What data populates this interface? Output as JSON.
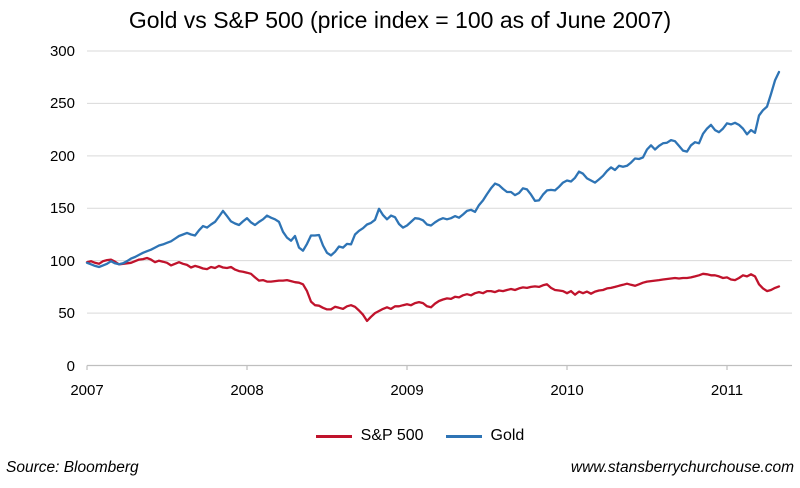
{
  "title": "Gold vs S&P 500 (price index = 100 as of June 2007)",
  "footer": {
    "source": "Source: Bloomberg",
    "website": "www.stansberrychurchouse.com"
  },
  "legend": [
    {
      "label": "S&P 500",
      "color": "#C0132C"
    },
    {
      "label": "Gold",
      "color": "#2E74B5"
    }
  ],
  "colors": {
    "gold_line": "#2E74B5",
    "spx_line": "#C0132C",
    "gridline": "#D9D9D9",
    "axis": "#BFBFBF",
    "text": "#000000",
    "background": "#FFFFFF"
  },
  "chart_data": {
    "type": "line",
    "title": "Gold vs S&P 500 (price index = 100 as of June 2007)",
    "xlabel": "",
    "ylabel": "",
    "ylim": [
      0,
      300
    ],
    "y_ticks": [
      0,
      50,
      100,
      150,
      200,
      250,
      300
    ],
    "x_tick_labels": [
      "2007",
      "2008",
      "2009",
      "2010",
      "2011"
    ],
    "grid": "horizontal",
    "legend_position": "bottom",
    "x_unit": "years after first tick, ~weekly points",
    "x": [
      0,
      0.025,
      0.05,
      0.075,
      0.1,
      0.125,
      0.15,
      0.175,
      0.2,
      0.225,
      0.25,
      0.275,
      0.3,
      0.325,
      0.35,
      0.375,
      0.4,
      0.425,
      0.45,
      0.475,
      0.5,
      0.525,
      0.55,
      0.575,
      0.6,
      0.625,
      0.65,
      0.675,
      0.7,
      0.725,
      0.75,
      0.775,
      0.8,
      0.825,
      0.85,
      0.875,
      0.9,
      0.925,
      0.95,
      0.975,
      1,
      1.025,
      1.05,
      1.075,
      1.1,
      1.125,
      1.15,
      1.175,
      1.2,
      1.225,
      1.25,
      1.275,
      1.3,
      1.325,
      1.35,
      1.375,
      1.4,
      1.425,
      1.45,
      1.475,
      1.5,
      1.525,
      1.55,
      1.575,
      1.6,
      1.625,
      1.65,
      1.675,
      1.7,
      1.725,
      1.75,
      1.775,
      1.8,
      1.825,
      1.85,
      1.875,
      1.9,
      1.925,
      1.95,
      1.975,
      2,
      2.025,
      2.05,
      2.075,
      2.1,
      2.125,
      2.15,
      2.175,
      2.2,
      2.225,
      2.25,
      2.275,
      2.3,
      2.325,
      2.35,
      2.375,
      2.4,
      2.425,
      2.45,
      2.475,
      2.5,
      2.525,
      2.55,
      2.575,
      2.6,
      2.625,
      2.65,
      2.675,
      2.7,
      2.725,
      2.75,
      2.775,
      2.8,
      2.825,
      2.85,
      2.875,
      2.9,
      2.925,
      2.95,
      2.975,
      3,
      3.025,
      3.05,
      3.075,
      3.1,
      3.125,
      3.15,
      3.175,
      3.2,
      3.225,
      3.25,
      3.275,
      3.3,
      3.325,
      3.35,
      3.375,
      3.4,
      3.425,
      3.45,
      3.475,
      3.5,
      3.525,
      3.55,
      3.575,
      3.6,
      3.625,
      3.65,
      3.675,
      3.7,
      3.725,
      3.75,
      3.775,
      3.8,
      3.825,
      3.85,
      3.875,
      3.9,
      3.925,
      3.95,
      3.975,
      4,
      4.025,
      4.05,
      4.075,
      4.1,
      4.125,
      4.15,
      4.175,
      4.2,
      4.225,
      4.25,
      4.275,
      4.3,
      4.325
    ],
    "series": [
      {
        "name": "Gold",
        "color": "#2E74B5",
        "values": [
          98,
          96.5,
          95,
          94,
          95.5,
          97,
          99.5,
          97.5,
          96.5,
          97.5,
          99.5,
          102,
          103.5,
          105.5,
          107.5,
          109,
          110.5,
          112.5,
          114.5,
          115.5,
          117,
          118.5,
          121,
          123.5,
          125,
          126.5,
          125,
          124,
          129,
          133,
          131.5,
          134.5,
          137,
          142,
          147.5,
          142.5,
          137.5,
          135.5,
          134,
          137.5,
          140.5,
          136.5,
          134,
          137,
          139.5,
          143,
          141,
          139.5,
          137,
          127.5,
          122,
          119,
          123.5,
          112.5,
          109.5,
          116,
          124,
          124,
          124.5,
          114.5,
          107.5,
          105,
          108.5,
          113.5,
          112.5,
          116,
          115.5,
          125,
          128.5,
          131,
          134.5,
          136,
          139,
          149.5,
          143.5,
          139.5,
          143,
          141.5,
          135,
          131.5,
          133.5,
          137,
          140.5,
          140,
          138.5,
          134.5,
          133.5,
          136.5,
          139,
          140.5,
          139.5,
          140.5,
          142.5,
          141,
          144,
          147.5,
          148.5,
          146.5,
          153,
          157.5,
          163.5,
          169,
          173.5,
          172,
          168.5,
          165.5,
          165.5,
          162.5,
          164.5,
          169,
          168,
          163,
          157,
          157.5,
          163,
          167,
          167.5,
          167,
          170.5,
          174.5,
          176.5,
          175.5,
          179,
          185,
          183,
          178.5,
          176.5,
          174.5,
          177.5,
          181,
          185.5,
          189,
          186.5,
          190.5,
          189.5,
          190.5,
          193.5,
          197.5,
          197,
          198.5,
          206,
          210,
          206,
          209.5,
          212,
          212.5,
          215,
          214,
          209.5,
          205,
          204,
          210,
          213,
          212,
          221,
          226,
          229.5,
          224.5,
          222.5,
          226,
          231,
          230,
          231.5,
          229.5,
          226,
          220.5,
          224.5,
          222,
          238.5,
          243.5,
          247,
          259,
          272,
          280
        ]
      },
      {
        "name": "S&P 500",
        "color": "#C0132C",
        "values": [
          98.5,
          99.5,
          98,
          97,
          99.5,
          100.5,
          101,
          99,
          96.5,
          97,
          97.5,
          98,
          99.5,
          101,
          101.5,
          102.5,
          101,
          98.5,
          100,
          99,
          98,
          95.5,
          97,
          98.5,
          97,
          96,
          93.5,
          95,
          94,
          92.5,
          92,
          94,
          93,
          95,
          93.5,
          93,
          94,
          91.5,
          90,
          89.5,
          88.5,
          87.5,
          84,
          81,
          81.5,
          80,
          80,
          80.5,
          81,
          81,
          81.5,
          80.5,
          79.5,
          79,
          77.5,
          71,
          61,
          57.5,
          57,
          55,
          53.5,
          53.5,
          56,
          55,
          54,
          56.5,
          57.5,
          56,
          52.5,
          48.5,
          42.5,
          46.5,
          50,
          52,
          54,
          55.5,
          54,
          56.5,
          56.5,
          57.5,
          58.5,
          57.5,
          59.5,
          60.5,
          59.5,
          56.5,
          55.5,
          59,
          61.5,
          63,
          64,
          63.5,
          65.5,
          65,
          67,
          68,
          67,
          69,
          70,
          69,
          71,
          71,
          70,
          71.5,
          71,
          72,
          73,
          72,
          73.5,
          74.5,
          74,
          75,
          75.5,
          75,
          76.5,
          77.5,
          74,
          72,
          71.5,
          71,
          69,
          71,
          67.5,
          70.5,
          69,
          70.5,
          68.5,
          70.5,
          71.5,
          72,
          73.5,
          74,
          75,
          76,
          77,
          78,
          77,
          76,
          77.5,
          79,
          80,
          80.5,
          81,
          81.5,
          82,
          82.5,
          83,
          83.5,
          83,
          83.5,
          83.5,
          84,
          85,
          86,
          87.5,
          87,
          86,
          86,
          85,
          83.5,
          84,
          82,
          81.5,
          83.5,
          86,
          85,
          87,
          85,
          77.5,
          73.5,
          71,
          72,
          74,
          75.5
        ]
      }
    ]
  }
}
